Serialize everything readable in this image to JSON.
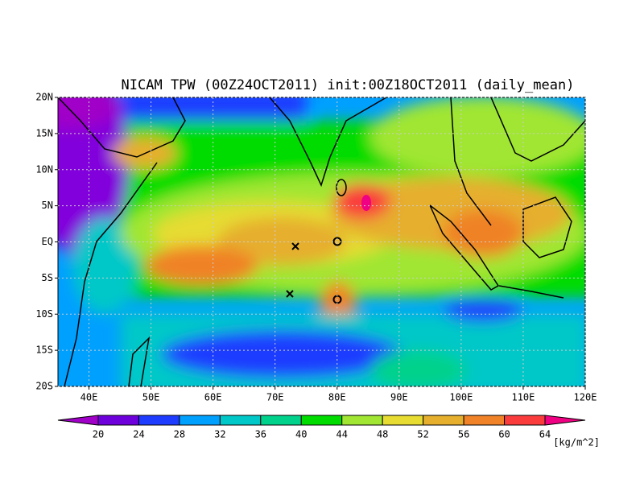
{
  "map": {
    "title": "NICAM TPW (00Z24OCT2011) init:00Z18OCT2011 (daily_mean)",
    "xlim": [
      35,
      120
    ],
    "ylim": [
      -20,
      20
    ],
    "xticks": [
      {
        "value": 40,
        "label": "40E"
      },
      {
        "value": 50,
        "label": "50E"
      },
      {
        "value": 60,
        "label": "60E"
      },
      {
        "value": 70,
        "label": "70E"
      },
      {
        "value": 80,
        "label": "80E"
      },
      {
        "value": 90,
        "label": "90E"
      },
      {
        "value": 100,
        "label": "100E"
      },
      {
        "value": 110,
        "label": "110E"
      },
      {
        "value": 120,
        "label": "120E"
      }
    ],
    "yticks": [
      {
        "value": 20,
        "label": "20N"
      },
      {
        "value": 15,
        "label": "15N"
      },
      {
        "value": 10,
        "label": "10N"
      },
      {
        "value": 5,
        "label": "5N"
      },
      {
        "value": 0,
        "label": "EQ"
      },
      {
        "value": -5,
        "label": "5S"
      },
      {
        "value": -10,
        "label": "10S"
      },
      {
        "value": -15,
        "label": "15S"
      },
      {
        "value": -20,
        "label": "20S"
      }
    ],
    "grid": true,
    "colorbar": {
      "levels": [
        20,
        24,
        28,
        32,
        36,
        40,
        44,
        48,
        52,
        56,
        60,
        64
      ],
      "colors": [
        "#a000c8",
        "#6e00dc",
        "#1e3cff",
        "#00a0ff",
        "#00c8c8",
        "#00d28c",
        "#00dc00",
        "#a0e632",
        "#e6dc32",
        "#e6af2d",
        "#f08228",
        "#fa3c3c",
        "#f00082"
      ],
      "unit": "[kg/m^2]"
    }
  }
}
